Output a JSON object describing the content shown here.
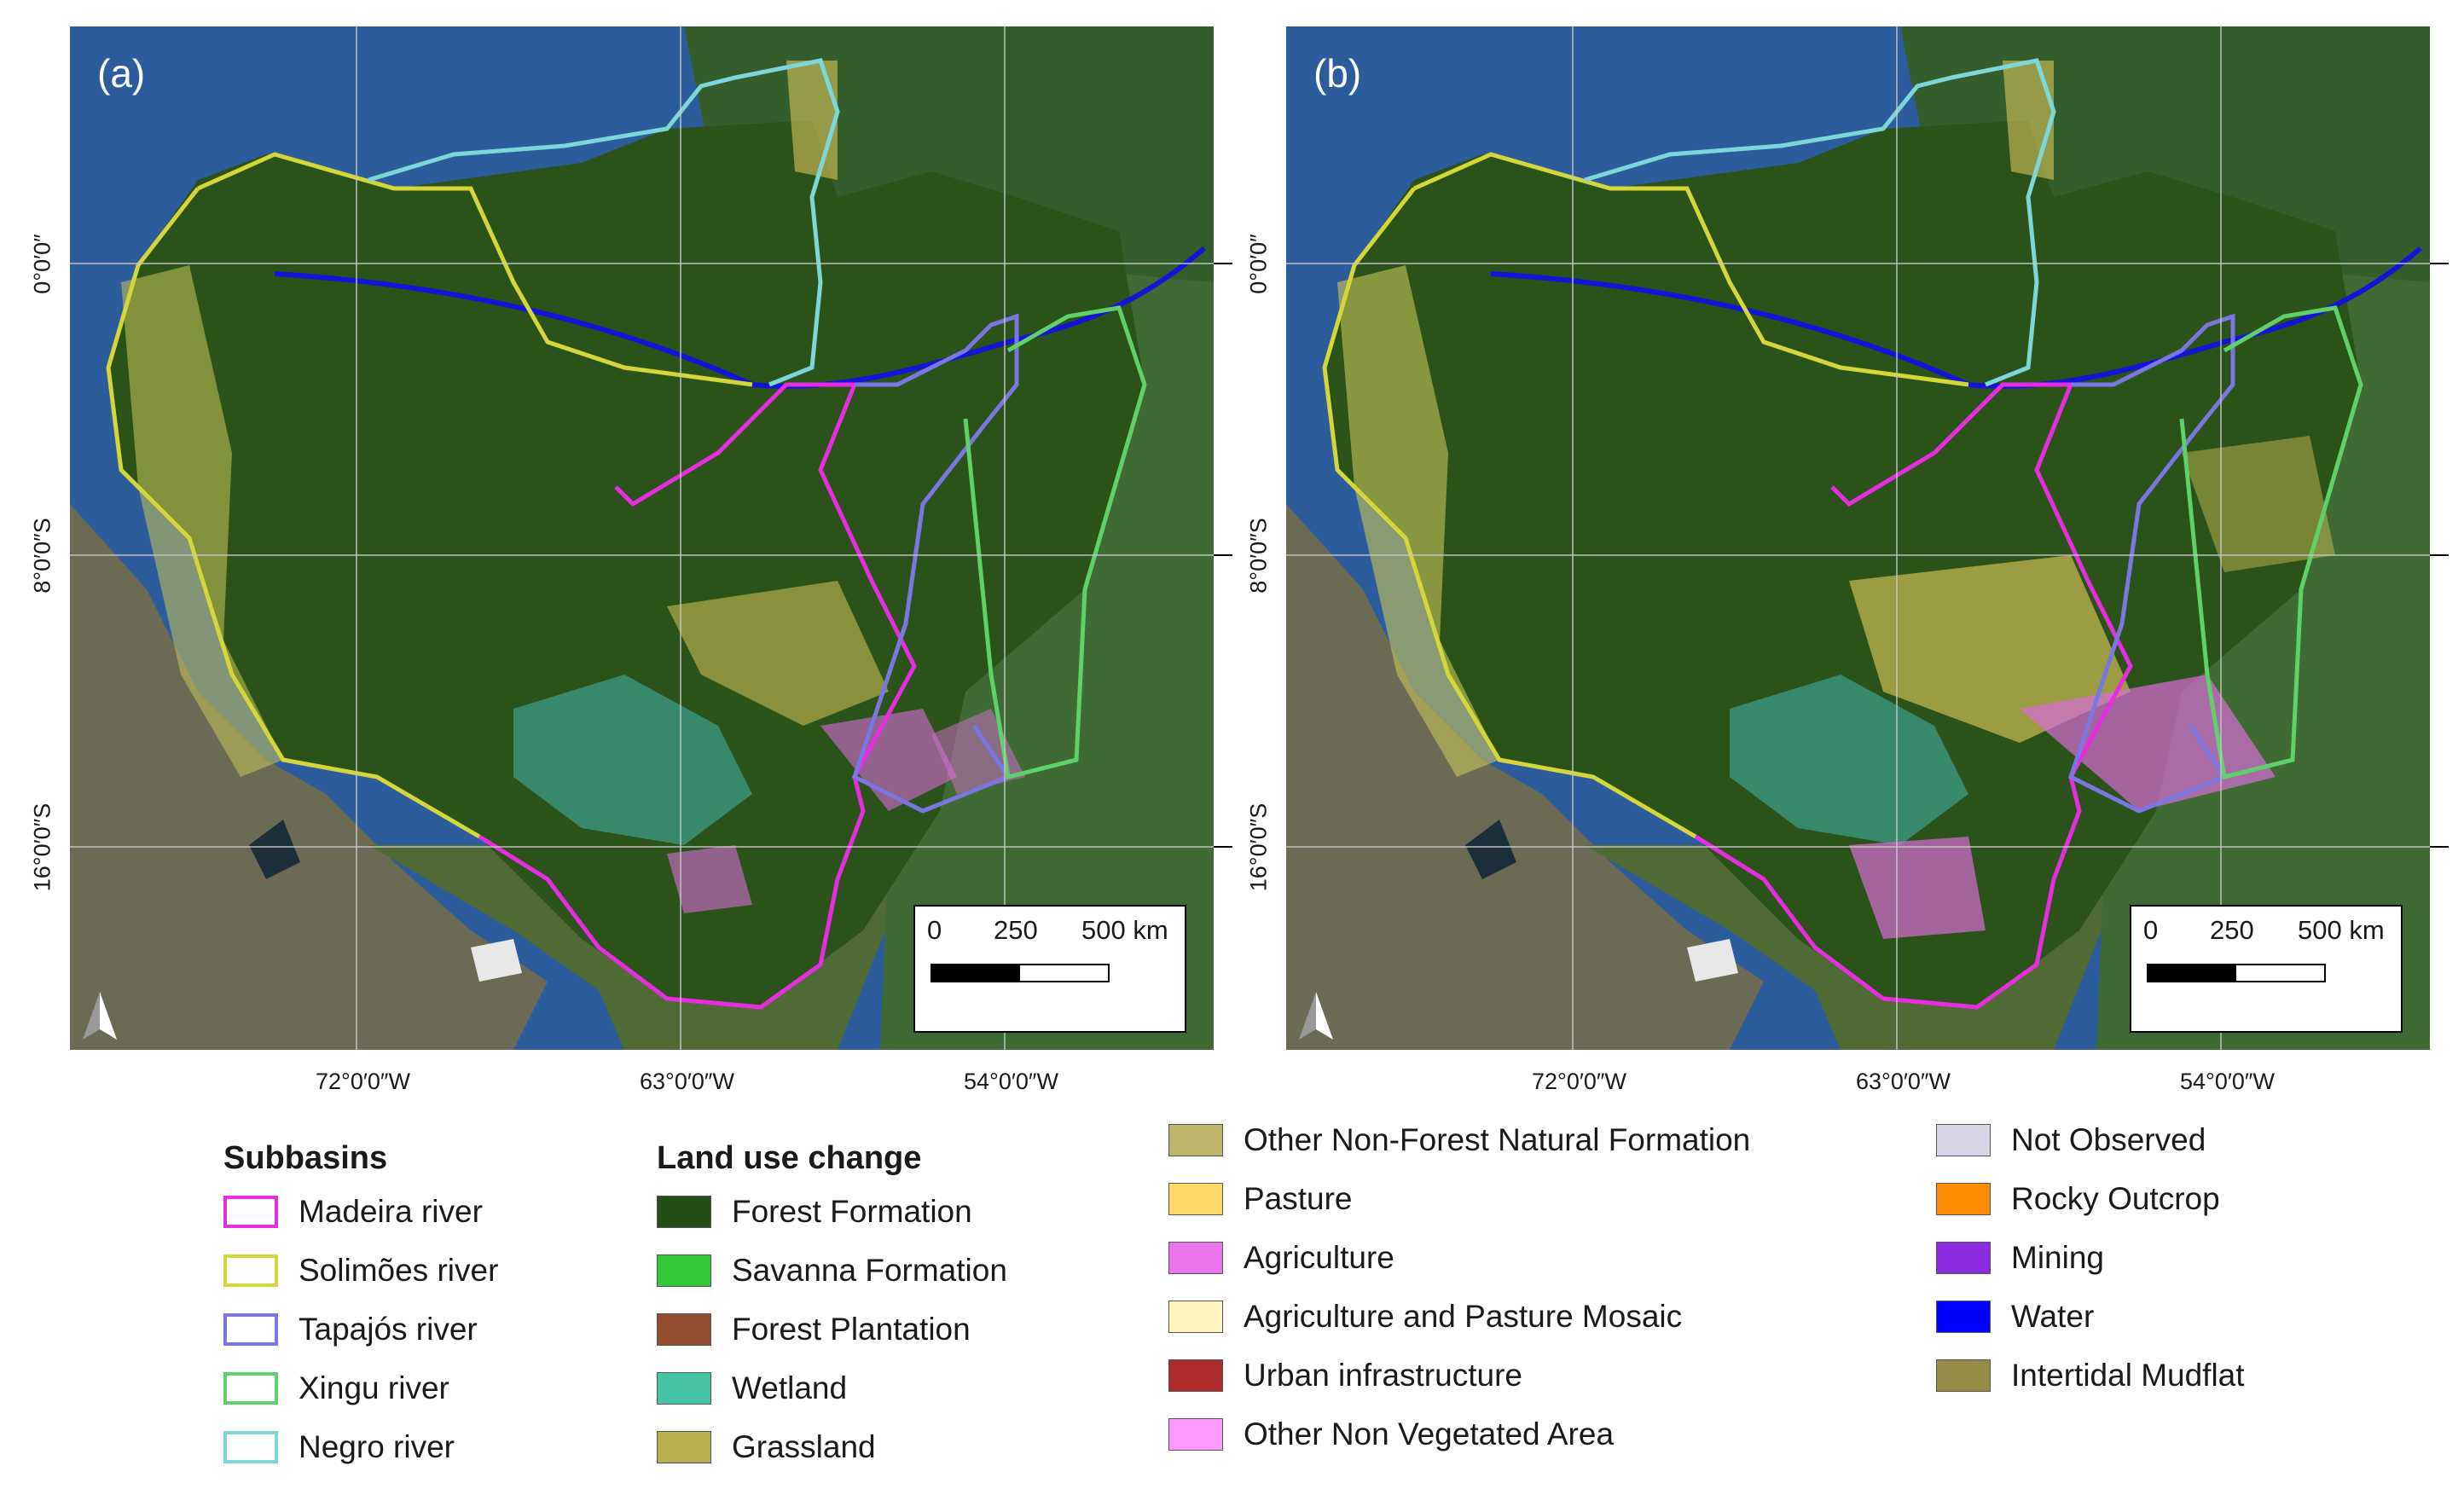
{
  "panels": [
    {
      "label": "(a)"
    },
    {
      "label": "(b)"
    }
  ],
  "axes": {
    "x_ticks": [
      "72°0′0″W",
      "63°0′0″W",
      "54°0′0″W"
    ],
    "y_ticks": [
      "0°0′0″",
      "8°0′0″S",
      "16°0′0″S"
    ]
  },
  "scalebar": {
    "labels": [
      "0",
      "250",
      "500 km"
    ]
  },
  "legend": {
    "subbasins": {
      "title": "Subbasins",
      "items": [
        {
          "label": "Madeira river",
          "color": "#e62de0"
        },
        {
          "label": "Solimões river",
          "color": "#d4d63a"
        },
        {
          "label": "Tapajós river",
          "color": "#7b76e0"
        },
        {
          "label": "Xingu river",
          "color": "#5fd06a"
        },
        {
          "label": "Negro river",
          "color": "#7fd6d8"
        }
      ]
    },
    "land_use": {
      "title": "Land use change",
      "col1": [
        {
          "label": "Forest Formation",
          "color": "#254d16"
        },
        {
          "label": "Savanna Formation",
          "color": "#33c93a"
        },
        {
          "label": "Forest Plantation",
          "color": "#924c30"
        },
        {
          "label": "Wetland",
          "color": "#45c2a5"
        },
        {
          "label": "Grassland",
          "color": "#b8af4f"
        }
      ],
      "col2": [
        {
          "label": "Other Non-Forest Natural Formation",
          "color": "#bdb66b"
        },
        {
          "label": "Pasture",
          "color": "#ffd966"
        },
        {
          "label": "Agriculture",
          "color": "#e974ed"
        },
        {
          "label": "Agriculture and Pasture Mosaic",
          "color": "#fff3bf"
        },
        {
          "label": "Urban infrastructure",
          "color": "#af2a2a"
        },
        {
          "label": "Other Non Vegetated Area",
          "color": "#ff99ff"
        }
      ],
      "col3": [
        {
          "label": "Not Observed",
          "color": "#d5d5e5"
        },
        {
          "label": "Rocky Outcrop",
          "color": "#ff8c00"
        },
        {
          "label": "Mining",
          "color": "#8a2be2"
        },
        {
          "label": "Water",
          "color": "#0000ff"
        },
        {
          "label": "Intertidal Mudflat",
          "color": "#968c46"
        }
      ]
    }
  }
}
